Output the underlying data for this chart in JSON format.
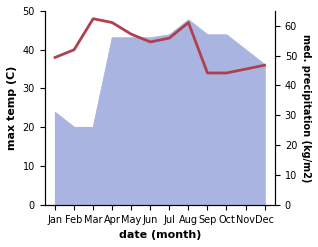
{
  "months": [
    "Jan",
    "Feb",
    "Mar",
    "Apr",
    "May",
    "Jun",
    "Jul",
    "Aug",
    "Sep",
    "Oct",
    "Nov",
    "Dec"
  ],
  "temperature": [
    38,
    40,
    48,
    47,
    44,
    42,
    43,
    47,
    34,
    34,
    35,
    36
  ],
  "precipitation": [
    31,
    26,
    26,
    56,
    56,
    56,
    57,
    62,
    57,
    57,
    52,
    47
  ],
  "temp_color": "#b04050",
  "precip_color": "#aab4e0",
  "temp_ylim": [
    0,
    50
  ],
  "precip_ylim": [
    0,
    65
  ],
  "precip_yticks": [
    0,
    10,
    20,
    30,
    40,
    50,
    60
  ],
  "temp_yticks": [
    0,
    10,
    20,
    30,
    40,
    50
  ],
  "xlabel": "date (month)",
  "ylabel_left": "max temp (C)",
  "ylabel_right": "med. precipitation (kg/m2)",
  "background_color": "#ffffff",
  "linewidth": 2.0
}
